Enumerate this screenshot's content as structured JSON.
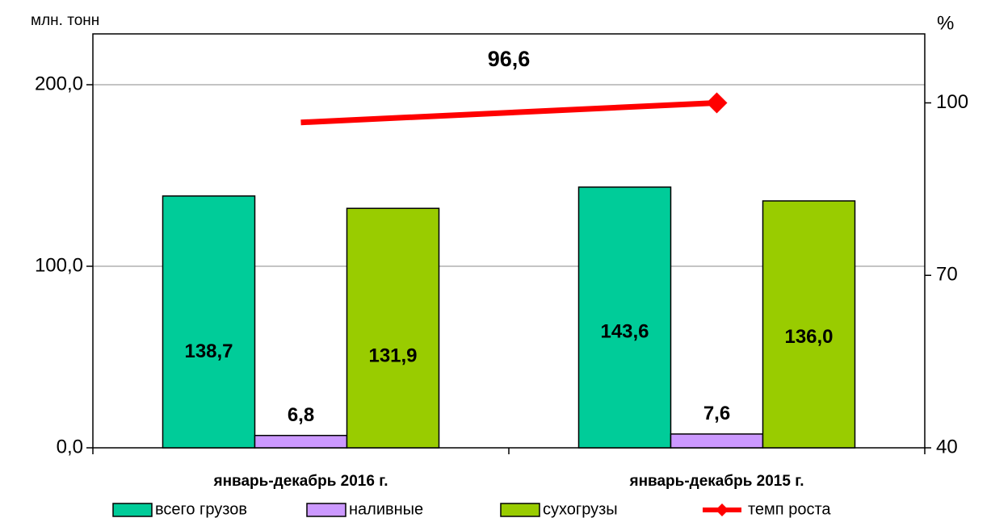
{
  "chart_data": {
    "type": "bar",
    "y_label": "млн. тонн",
    "y2_label": "%",
    "categories": [
      "январь-декабрь 2016 г.",
      "январь-декабрь 2015 г."
    ],
    "series": [
      {
        "name": "всего грузов",
        "color": "#00cc99",
        "values": [
          138.7,
          143.6
        ],
        "value_labels": [
          "138,7",
          "143,6"
        ]
      },
      {
        "name": "наливные",
        "color": "#cc99ff",
        "values": [
          6.8,
          7.6
        ],
        "value_labels": [
          "6,8",
          "7,6"
        ]
      },
      {
        "name": "сухогрузы",
        "color": "#99cc00",
        "values": [
          131.9,
          136.0
        ],
        "value_labels": [
          "131,9",
          "136,0"
        ]
      },
      {
        "name": "темп роста",
        "type": "line",
        "axis": "y2",
        "color": "#ff0000",
        "values": [
          96.6,
          100
        ],
        "value_labels": [
          "96,6",
          null
        ]
      }
    ],
    "ylim": [
      0,
      228
    ],
    "yticks": [
      {
        "value": 0,
        "label": "0,0"
      },
      {
        "value": 100,
        "label": "100,0"
      },
      {
        "value": 200,
        "label": "200,0"
      }
    ],
    "y2lim": [
      40,
      112
    ],
    "y2ticks": [
      40,
      70,
      100
    ],
    "grid": true,
    "legend": "bottom"
  }
}
